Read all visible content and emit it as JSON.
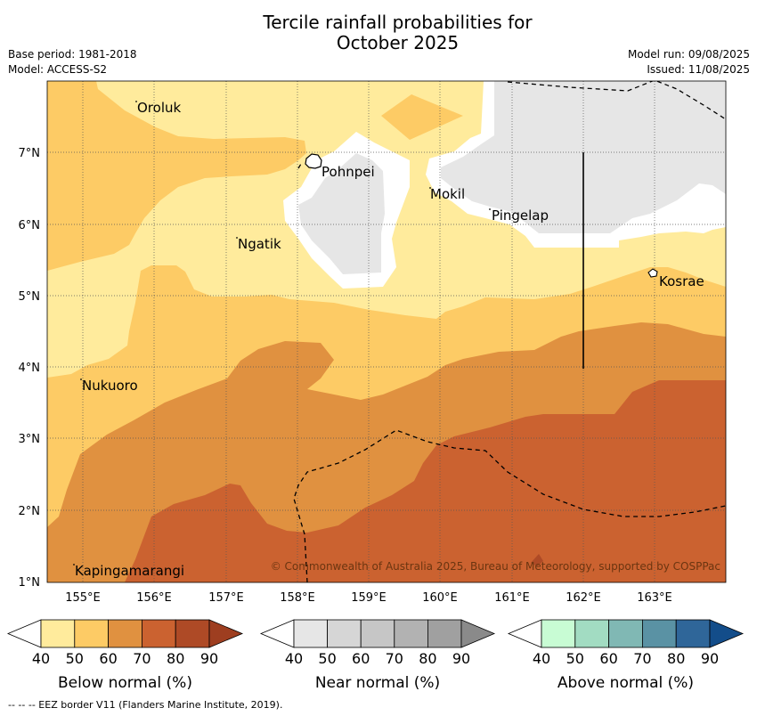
{
  "header": {
    "title_line1": "Tercile rainfall probabilities for",
    "title_line2": "October 2025",
    "base_period": "Base period: 1981-2018",
    "model": "Model: ACCESS-S2",
    "model_run": "Model run: 09/08/2025",
    "issued": "Issued: 11/08/2025"
  },
  "map": {
    "lon_labels": [
      "155°E",
      "156°E",
      "157°E",
      "158°E",
      "159°E",
      "160°E",
      "161°E",
      "162°E",
      "163°E"
    ],
    "lat_labels": [
      "7°N",
      "6°N",
      "5°N",
      "4°N",
      "3°N",
      "2°N",
      "1°N"
    ],
    "places": [
      {
        "name": "Oroluk",
        "kind": "point"
      },
      {
        "name": "Pohnpei",
        "kind": "island"
      },
      {
        "name": "Mokil",
        "kind": "point"
      },
      {
        "name": "Pingelap",
        "kind": "point"
      },
      {
        "name": "Ngatik",
        "kind": "point"
      },
      {
        "name": "Kosrae",
        "kind": "island"
      },
      {
        "name": "Nukuoro",
        "kind": "point"
      },
      {
        "name": "Kapingamarangi",
        "kind": "point"
      }
    ],
    "copyright": "© Commonwealth of Australia 2025, Bureau of Meteorology, supported by COSPPac",
    "colors": {
      "below_40_50": "#ffeb9c",
      "below_50_60": "#fdcb65",
      "below_60_70": "#e09140",
      "below_70_80": "#cb6230",
      "near_40_50": "#e6e6e6",
      "white_lt_40": "#ffffff"
    }
  },
  "colorbars": [
    {
      "title": "Below normal (%)",
      "ticks": [
        "40",
        "50",
        "60",
        "70",
        "80",
        "90"
      ],
      "colors": [
        "#ffeb9c",
        "#fdcb65",
        "#e09140",
        "#cb6230",
        "#ae4a26"
      ],
      "over": "#9e3e20"
    },
    {
      "title": "Near normal (%)",
      "ticks": [
        "40",
        "50",
        "60",
        "70",
        "80",
        "90"
      ],
      "colors": [
        "#e6e6e6",
        "#d6d6d6",
        "#c6c6c6",
        "#b2b2b2",
        "#a0a0a0"
      ],
      "over": "#8a8a8a"
    },
    {
      "title": "Above normal (%)",
      "ticks": [
        "40",
        "50",
        "60",
        "70",
        "80",
        "90"
      ],
      "colors": [
        "#c8fcd4",
        "#a2dcc2",
        "#80b8b4",
        "#5a92a4",
        "#2f6699"
      ],
      "over": "#134d8a"
    }
  ],
  "footer": {
    "legend": "--  --  -- EEZ border V11 (Flanders Marine Institute, 2019)."
  }
}
